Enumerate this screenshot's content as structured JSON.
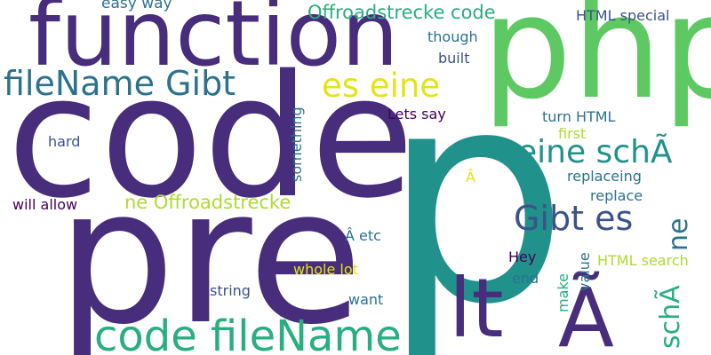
{
  "palette": {
    "dark_purple": "#472d7b",
    "indigo": "#3b528b",
    "blue": "#2c728e",
    "teal": "#21918c",
    "green": "#28ae80",
    "light_green": "#5ec962",
    "lime": "#addc30",
    "yellow": "#e3e418",
    "black_purple": "#440154"
  },
  "words": [
    {
      "id": "p",
      "text": "p",
      "color": "#21918c"
    },
    {
      "id": "code",
      "text": "code",
      "color": "#472d7b"
    },
    {
      "id": "pre",
      "text": "pre",
      "color": "#472d7b"
    },
    {
      "id": "function",
      "text": "function",
      "color": "#472d7b"
    },
    {
      "id": "php",
      "text": "php",
      "color": "#5ec962"
    },
    {
      "id": "lt",
      "text": "lt",
      "color": "#472d7b"
    },
    {
      "id": "a-tilde",
      "text": "Ã",
      "color": "#472d7b"
    },
    {
      "id": "code-filename",
      "text": "code fileName",
      "color": "#28ae80"
    },
    {
      "id": "filename-gibt",
      "text": "fileName Gibt",
      "color": "#2c728e"
    },
    {
      "id": "es-eine",
      "text": "es eine",
      "color": "#e3e418"
    },
    {
      "id": "eine-sch",
      "text": "eine schÃ",
      "color": "#21918c"
    },
    {
      "id": "gibt-es",
      "text": "Gibt es",
      "color": "#3b528b"
    },
    {
      "id": "ne",
      "text": "ne",
      "color": "#2c728e"
    },
    {
      "id": "sch-a",
      "text": "schÃ",
      "color": "#28ae80"
    },
    {
      "id": "offroadstrecke-code",
      "text": "Offroadstrecke code",
      "color": "#28ae80"
    },
    {
      "id": "ne-offroadstrecke",
      "text": "ne Offroadstrecke",
      "color": "#addc30"
    },
    {
      "id": "easy-way",
      "text": "easy way",
      "color": "#2c728e"
    },
    {
      "id": "html-special",
      "text": "HTML special",
      "color": "#3b528b"
    },
    {
      "id": "though",
      "text": "though",
      "color": "#2c728e"
    },
    {
      "id": "built",
      "text": "built",
      "color": "#3b528b"
    },
    {
      "id": "lets-say",
      "text": "Lets say",
      "color": "#440154"
    },
    {
      "id": "turn-html",
      "text": "turn HTML",
      "color": "#2c728e"
    },
    {
      "id": "first",
      "text": "first",
      "color": "#addc30"
    },
    {
      "id": "hard",
      "text": "hard",
      "color": "#3b528b"
    },
    {
      "id": "something",
      "text": "something",
      "color": "#2c728e"
    },
    {
      "id": "replaceing",
      "text": "replaceing",
      "color": "#2c728e"
    },
    {
      "id": "replace",
      "text": "replace",
      "color": "#2c728e"
    },
    {
      "id": "a-circ",
      "text": "Â",
      "color": "#e3e418"
    },
    {
      "id": "will-allow",
      "text": "will allow",
      "color": "#440154"
    },
    {
      "id": "a-etc",
      "text": "Â etc",
      "color": "#2c728e"
    },
    {
      "id": "hey",
      "text": "Hey",
      "color": "#440154"
    },
    {
      "id": "html-search",
      "text": "HTML search",
      "color": "#addc30"
    },
    {
      "id": "whole-lot",
      "text": "whole lot",
      "color": "#e3e418"
    },
    {
      "id": "value",
      "text": "value",
      "color": "#2c728e"
    },
    {
      "id": "make",
      "text": "make",
      "color": "#28ae80"
    },
    {
      "id": "end",
      "text": "end",
      "color": "#2c728e"
    },
    {
      "id": "string",
      "text": "string",
      "color": "#3b528b"
    },
    {
      "id": "want",
      "text": "want",
      "color": "#2c728e"
    }
  ]
}
